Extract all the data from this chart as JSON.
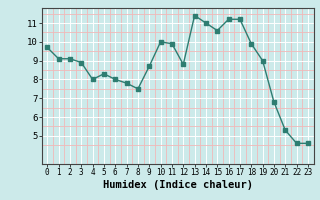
{
  "x": [
    0,
    1,
    2,
    3,
    4,
    5,
    6,
    7,
    8,
    9,
    10,
    11,
    12,
    13,
    14,
    15,
    16,
    17,
    18,
    19,
    20,
    21,
    22,
    23
  ],
  "y": [
    9.7,
    9.1,
    9.1,
    8.9,
    8.0,
    8.3,
    8.0,
    7.8,
    7.5,
    8.7,
    10.0,
    9.9,
    8.8,
    11.4,
    11.0,
    10.6,
    11.2,
    11.2,
    9.9,
    9.0,
    6.8,
    5.3,
    4.6,
    4.6
  ],
  "xlabel": "Humidex (Indice chaleur)",
  "ylim": [
    4.0,
    11.8
  ],
  "xlim": [
    -0.5,
    23.5
  ],
  "yticks": [
    5,
    6,
    7,
    8,
    9,
    10,
    11
  ],
  "xticks": [
    0,
    1,
    2,
    3,
    4,
    5,
    6,
    7,
    8,
    9,
    10,
    11,
    12,
    13,
    14,
    15,
    16,
    17,
    18,
    19,
    20,
    21,
    22,
    23
  ],
  "line_color": "#2e7d71",
  "marker_color": "#2e7d71",
  "bg_color": "#cceaea",
  "grid_major_color": "#ffffff",
  "grid_minor_color": "#f0b8b8"
}
